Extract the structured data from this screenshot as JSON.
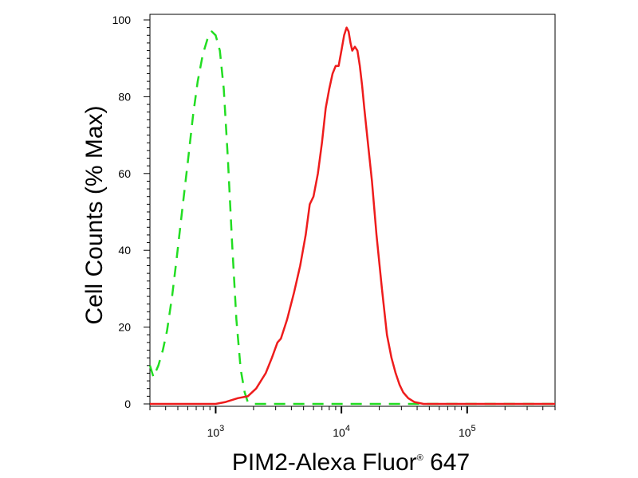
{
  "chart_data": {
    "type": "line",
    "title": "",
    "xlabel": "PIM2-Alexa Fluor",
    "xlabel_superscript": "®",
    "xlabel_suffix": " 647",
    "ylabel": "Cell Counts (% Max)",
    "x_scale": "log",
    "xlim": [
      300,
      500000
    ],
    "ylim": [
      0,
      100
    ],
    "y_ticks": [
      0,
      20,
      40,
      60,
      80,
      100
    ],
    "y_tick_labels": [
      "0",
      "20",
      "40",
      "60",
      "80",
      "100"
    ],
    "x_ticks": [
      1000,
      10000,
      100000
    ],
    "x_tick_base": "10",
    "x_tick_exponents": [
      "3",
      "4",
      "5"
    ],
    "grid": false,
    "series": [
      {
        "color": "#22dd22",
        "dash": "dashed",
        "x": [
          300,
          320,
          350,
          380,
          410,
          450,
          490,
          540,
          600,
          660,
          720,
          790,
          860,
          930,
          1000,
          1080,
          1160,
          1250,
          1350,
          1460,
          1580,
          1700,
          1800,
          2000,
          3000,
          10000,
          100000,
          500000
        ],
        "y": [
          10,
          7,
          10,
          14,
          19,
          28,
          38,
          50,
          63,
          75,
          84,
          91,
          95,
          97,
          96,
          92,
          82,
          64,
          42,
          22,
          9,
          3,
          0.5,
          0,
          0,
          0,
          0,
          0
        ]
      },
      {
        "color": "#ee1c1c",
        "dash": "solid",
        "x": [
          300,
          1000,
          1200,
          1500,
          1800,
          2100,
          2500,
          2800,
          3100,
          3300,
          3700,
          4200,
          4700,
          5200,
          5600,
          6000,
          6500,
          7000,
          7500,
          8000,
          8500,
          9000,
          9500,
          10000,
          10500,
          11000,
          11400,
          11800,
          12200,
          12800,
          13400,
          14000,
          14600,
          15200,
          16000,
          17500,
          19000,
          21000,
          23000,
          25000,
          27000,
          29000,
          31000,
          34000,
          38000,
          45000,
          60000,
          100000,
          500000
        ],
        "y": [
          0,
          0,
          0.5,
          1.5,
          2,
          4,
          8,
          12,
          16,
          17,
          22,
          29,
          36,
          44,
          52,
          54,
          60,
          68,
          77,
          82,
          86,
          88,
          88,
          92,
          96,
          98,
          97,
          94,
          92,
          93,
          92,
          88,
          83,
          77,
          70,
          58,
          44,
          30,
          18,
          12,
          8,
          5,
          3,
          1.5,
          0.5,
          0,
          0,
          0,
          0
        ]
      }
    ]
  }
}
